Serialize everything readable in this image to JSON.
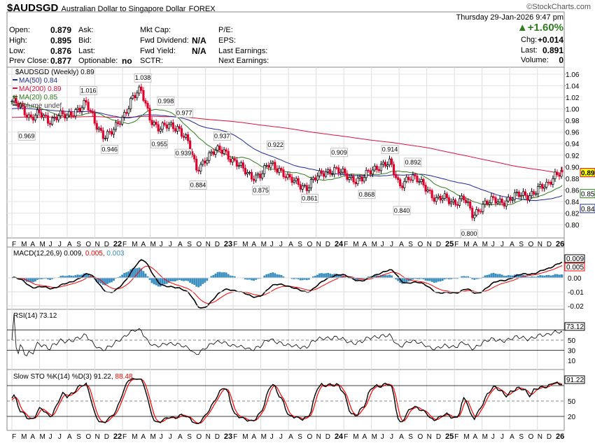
{
  "header": {
    "symbol": "$AUDSGD",
    "name": "Australian Dollar to Singapore Dollar",
    "exchange": "FOREX",
    "brand": "©StockCharts.com",
    "datetime": "Thursday  29-Jan-2026  9:47 pm",
    "change_pct": "+1.60%",
    "chg_label": "Chg:",
    "chg": "+0.014",
    "last_label": "Last:",
    "last": "0.891",
    "volume_label": "Volume:",
    "volume": "0",
    "open_label": "Open:",
    "open": "0.879",
    "high_label": "High:",
    "high": "0.895",
    "low_label": "Low:",
    "low": "0.876",
    "prev_label": "Prev Close:",
    "prev": "0.877",
    "ask_label": "Ask:",
    "bid_label": "Bid:",
    "last2_label": "Last:",
    "optionable_label": "Optionable:",
    "optionable": "no",
    "mktcap_label": "Mkt Cap:",
    "fwddiv_label": "Fwd Dividend:",
    "fwddiv": "N/A",
    "fwdyield_label": "Fwd Yield:",
    "fwdyield": "N/A",
    "sctr_label": "SCTR:",
    "pe_label": "P/E:",
    "eps_label": "EPS:",
    "lastearn_label": "Last Earnings:",
    "nextearn_label": "Next Earnings:"
  },
  "colors": {
    "up": "#000000",
    "down": "#e0002a",
    "ma50": "#1f2a9a",
    "ma200": "#e0103c",
    "ma20": "#2e7d1e",
    "macd": "#000000",
    "signal": "#ff0000",
    "hist": "#3a8fc0",
    "accent": "#2e7d1e"
  },
  "chart_data": {
    "type": "line",
    "price_legend": "$AUDSGD (Weekly) 0.89",
    "ma50_legend": "MA(50) 0.84",
    "ma200_legend": "MA(200) 0.89",
    "ma20_legend": "MA(20) 0.85",
    "volume_legend": "Volume undef",
    "macd_legend": "MACD(12,26,9) 0.009,",
    "macd_sig": "0.005,",
    "macd_hist": "0.003",
    "rsi_legend": "RSI(14) 73.12",
    "sto_legend": "Slow STO %K(14) %D(3) 91.22,",
    "sto_d": "88.48",
    "price_ticks": [
      1.06,
      1.04,
      1.02,
      1.0,
      0.98,
      0.96,
      0.94,
      0.92,
      0.9,
      0.88,
      0.86,
      0.84,
      0.82,
      0.8
    ],
    "price_tags": [
      "0.89",
      "0.85",
      "0.84"
    ],
    "macd_ticks": [
      "0.00",
      "-0.01",
      "-0.02"
    ],
    "macd_tags": [
      "0.009",
      "0.005"
    ],
    "rsi_ticks": [
      "50",
      "30",
      "10"
    ],
    "rsi_tag": "73.12",
    "sto_ticks": [
      "50",
      "20"
    ],
    "sto_tag": "91.22",
    "months": [
      "F",
      "M",
      "A",
      "M",
      "J",
      "J",
      "A",
      "S",
      "O",
      "N",
      "D",
      "22",
      "F",
      "M",
      "A",
      "M",
      "J",
      "J",
      "A",
      "S",
      "O",
      "N",
      "D",
      "23",
      "F",
      "M",
      "A",
      "M",
      "J",
      "J",
      "A",
      "S",
      "O",
      "N",
      "D",
      "24",
      "F",
      "M",
      "A",
      "M",
      "J",
      "J",
      "A",
      "S",
      "O",
      "N",
      "D",
      "25",
      "F",
      "M",
      "A",
      "M",
      "J",
      "J",
      "A",
      "S",
      "O",
      "N",
      "D",
      "26"
    ],
    "monthly_close": [
      1.01,
      1.005,
      0.985,
      0.99,
      0.98,
      0.99,
      0.985,
      1.0,
      1.01,
      0.975,
      0.955,
      0.96,
      0.985,
      1.02,
      1.03,
      0.985,
      0.965,
      0.97,
      0.97,
      0.945,
      0.895,
      0.915,
      0.925,
      0.93,
      0.91,
      0.895,
      0.885,
      0.885,
      0.905,
      0.898,
      0.877,
      0.872,
      0.865,
      0.88,
      0.893,
      0.895,
      0.886,
      0.88,
      0.878,
      0.893,
      0.905,
      0.905,
      0.868,
      0.883,
      0.875,
      0.865,
      0.842,
      0.845,
      0.84,
      0.845,
      0.815,
      0.835,
      0.84,
      0.84,
      0.845,
      0.85,
      0.852,
      0.86,
      0.866,
      0.891
    ],
    "annotations": [
      {
        "m": 1.6,
        "v": 0.969
      },
      {
        "m": 8.3,
        "v": 1.016
      },
      {
        "m": 10.6,
        "v": 0.946
      },
      {
        "m": 14.2,
        "v": 1.038
      },
      {
        "m": 16.0,
        "v": 0.955
      },
      {
        "m": 16.7,
        "v": 0.998
      },
      {
        "m": 18.6,
        "v": 0.939
      },
      {
        "m": 18.7,
        "v": 0.977
      },
      {
        "m": 20.2,
        "v": 0.884
      },
      {
        "m": 22.8,
        "v": 0.937
      },
      {
        "m": 27.0,
        "v": 0.875
      },
      {
        "m": 28.6,
        "v": 0.922
      },
      {
        "m": 32.3,
        "v": 0.861
      },
      {
        "m": 35.5,
        "v": 0.909
      },
      {
        "m": 38.5,
        "v": 0.868
      },
      {
        "m": 41.0,
        "v": 0.914
      },
      {
        "m": 42.3,
        "v": 0.84
      },
      {
        "m": 43.5,
        "v": 0.892
      },
      {
        "m": 49.6,
        "v": 0.8
      }
    ]
  }
}
